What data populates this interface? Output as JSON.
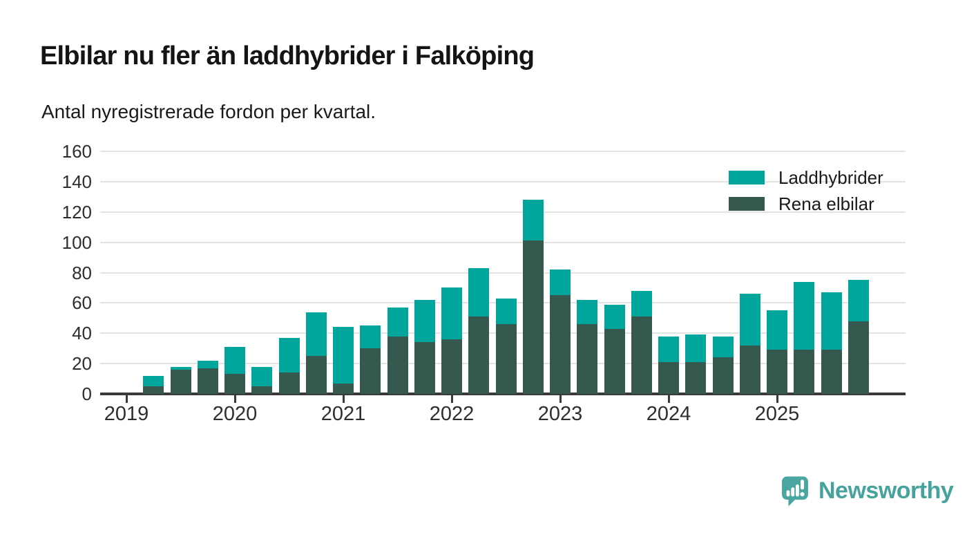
{
  "title": "Elbilar nu fler än laddhybrider i Falköping",
  "subtitle": "Antal nyregistrerade fordon per kvartal.",
  "colors": {
    "laddhybrider_teal": "#00a69c",
    "rena_elbilar_dark": "#36594f",
    "axis": "#3a3a3a",
    "gridline": "#e3e3e3",
    "text": "#1a1a1a",
    "brand_teal": "#46a29c"
  },
  "legend": [
    {
      "label": "Laddhybrider",
      "color": "#00a69c"
    },
    {
      "label": "Rena elbilar",
      "color": "#36594f"
    }
  ],
  "chart_data": {
    "type": "bar",
    "stacked": true,
    "title": "Elbilar nu fler än laddhybrider i Falköping",
    "subtitle": "Antal nyregistrerade fordon per kvartal.",
    "xlabel": "",
    "ylabel": "",
    "ylim": [
      0,
      160
    ],
    "y_ticks": [
      0,
      20,
      40,
      60,
      80,
      100,
      120,
      140,
      160
    ],
    "x_tick_labels": [
      "2019",
      "2020",
      "2021",
      "2022",
      "2023",
      "2024",
      "2025"
    ],
    "grid": "horizontal",
    "legend_position": "top-right",
    "categories": [
      "2019 Q1",
      "2019 Q2",
      "2019 Q3",
      "2019 Q4",
      "2020 Q1",
      "2020 Q2",
      "2020 Q3",
      "2020 Q4",
      "2021 Q1",
      "2021 Q2",
      "2021 Q3",
      "2021 Q4",
      "2022 Q1",
      "2022 Q2",
      "2022 Q3",
      "2022 Q4",
      "2023 Q1",
      "2023 Q2",
      "2023 Q3",
      "2023 Q4",
      "2024 Q1",
      "2024 Q2",
      "2024 Q3",
      "2024 Q4",
      "2025 Q1",
      "2025 Q2",
      "2025 Q3",
      "2025 Q4"
    ],
    "series": [
      {
        "name": "Rena elbilar",
        "color": "#36594f",
        "values": [
          0,
          5,
          16,
          17,
          13,
          5,
          14,
          25,
          7,
          30,
          38,
          34,
          36,
          51,
          46,
          101,
          65,
          46,
          43,
          51,
          21,
          21,
          24,
          32,
          29,
          29,
          29,
          48
        ]
      },
      {
        "name": "Laddhybrider",
        "color": "#00a69c",
        "values": [
          0,
          7,
          2,
          5,
          18,
          13,
          23,
          29,
          37,
          15,
          19,
          28,
          34,
          32,
          17,
          27,
          17,
          16,
          16,
          17,
          17,
          18,
          14,
          34,
          26,
          45,
          38,
          27
        ]
      }
    ]
  },
  "footer": {
    "brand_name": "Newsworthy",
    "logo_icon": "speech-bubble-bar-chart-icon"
  }
}
